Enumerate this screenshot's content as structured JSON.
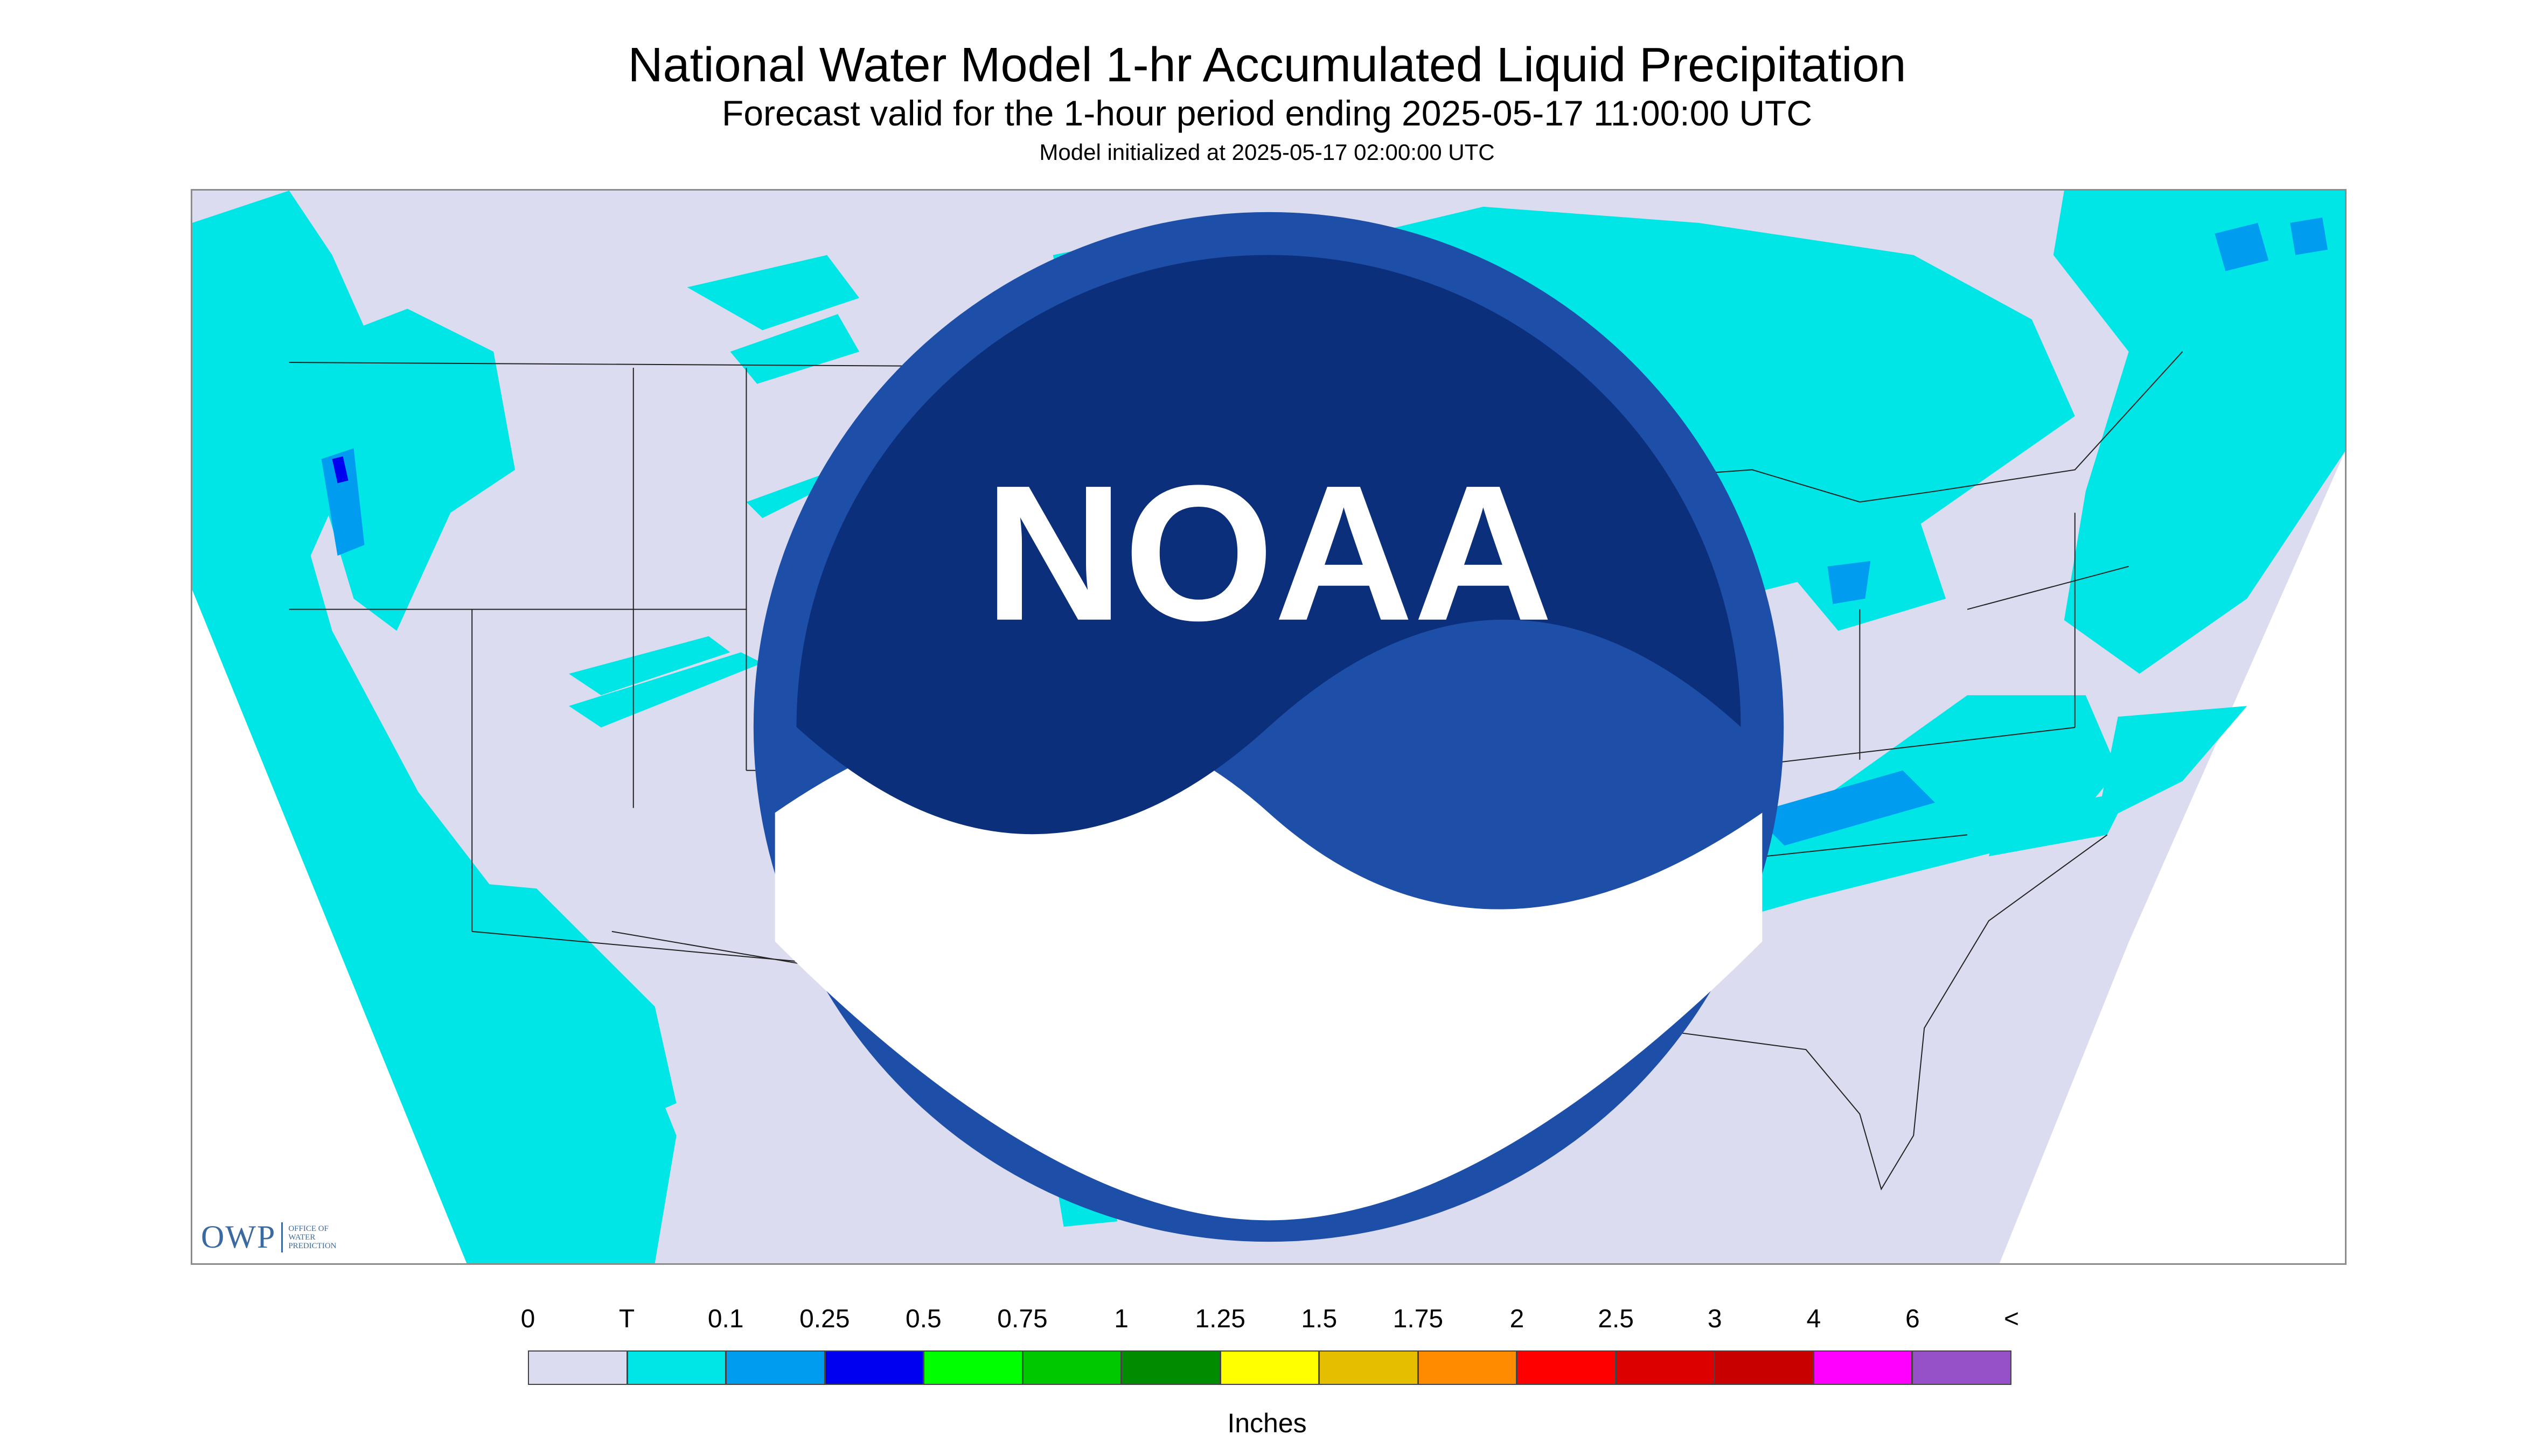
{
  "title": "National Water Model 1-hr Accumulated Liquid Precipitation",
  "subtitle": "Forecast valid for the 1-hour period ending 2025-05-17 11:00:00 UTC",
  "init_line": "Model initialized at 2025-05-17 02:00:00 UTC",
  "logos": {
    "owp_mark": "OWP",
    "owp_text": "OFFICE OF WATER PREDICTION",
    "noaa_text": "NOAA"
  },
  "legend": {
    "labels": [
      "0",
      "T",
      "0.1",
      "0.25",
      "0.5",
      "0.75",
      "1",
      "1.25",
      "1.5",
      "1.75",
      "2",
      "2.5",
      "3",
      "4",
      "6",
      "<"
    ],
    "colors": [
      "#dcdcf0",
      "#00e6e6",
      "#009cf0",
      "#0000f0",
      "#00ff00",
      "#00c800",
      "#008c00",
      "#ffff00",
      "#e6be00",
      "#ff8c00",
      "#ff0000",
      "#dc0000",
      "#c80000",
      "#ff00ff",
      "#9650c8"
    ],
    "units": "Inches"
  },
  "map": {
    "background_color": "#dcdcf0",
    "trace_color": "#00e6e6",
    "light_color": "#009cf0",
    "moderate_color": "#0000f0",
    "heavy_colors": [
      "#00ff00",
      "#00c800",
      "#008c00",
      "#ffff00"
    ],
    "boundary_color": "#222222"
  }
}
